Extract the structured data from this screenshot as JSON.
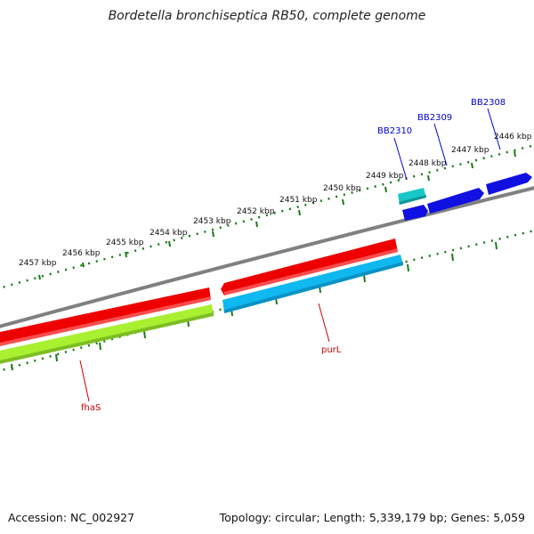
{
  "title": "Bordetella bronchiseptica RB50, complete genome",
  "footer": {
    "accession": "Accession: NC_002927",
    "summary": "Topology: circular; Length: 5,339,179 bp; Genes: 5,059"
  },
  "kbp_labels": [
    "2457 kbp",
    "2456 kbp",
    "2455 kbp",
    "2454 kbp",
    "2453 kbp",
    "2452 kbp",
    "2451 kbp",
    "2450 kbp",
    "2449 kbp",
    "2448 kbp",
    "2447 kbp",
    "2446 kbp"
  ],
  "gene_labels": {
    "bb2308": "BB2308",
    "bb2309": "BB2309",
    "bb2310": "BB2310",
    "purl": "purL",
    "fhas": "fhaS"
  },
  "colors": {
    "backbone": "#808080",
    "ticks": "#1a7a1a",
    "red": "#ee0000",
    "skyblue": "#10b8f0",
    "lime": "#a8f030",
    "blue": "#1010e0",
    "teal": "#18c8c8",
    "blue_label": "#0000cc",
    "red_label": "#cc0000"
  }
}
